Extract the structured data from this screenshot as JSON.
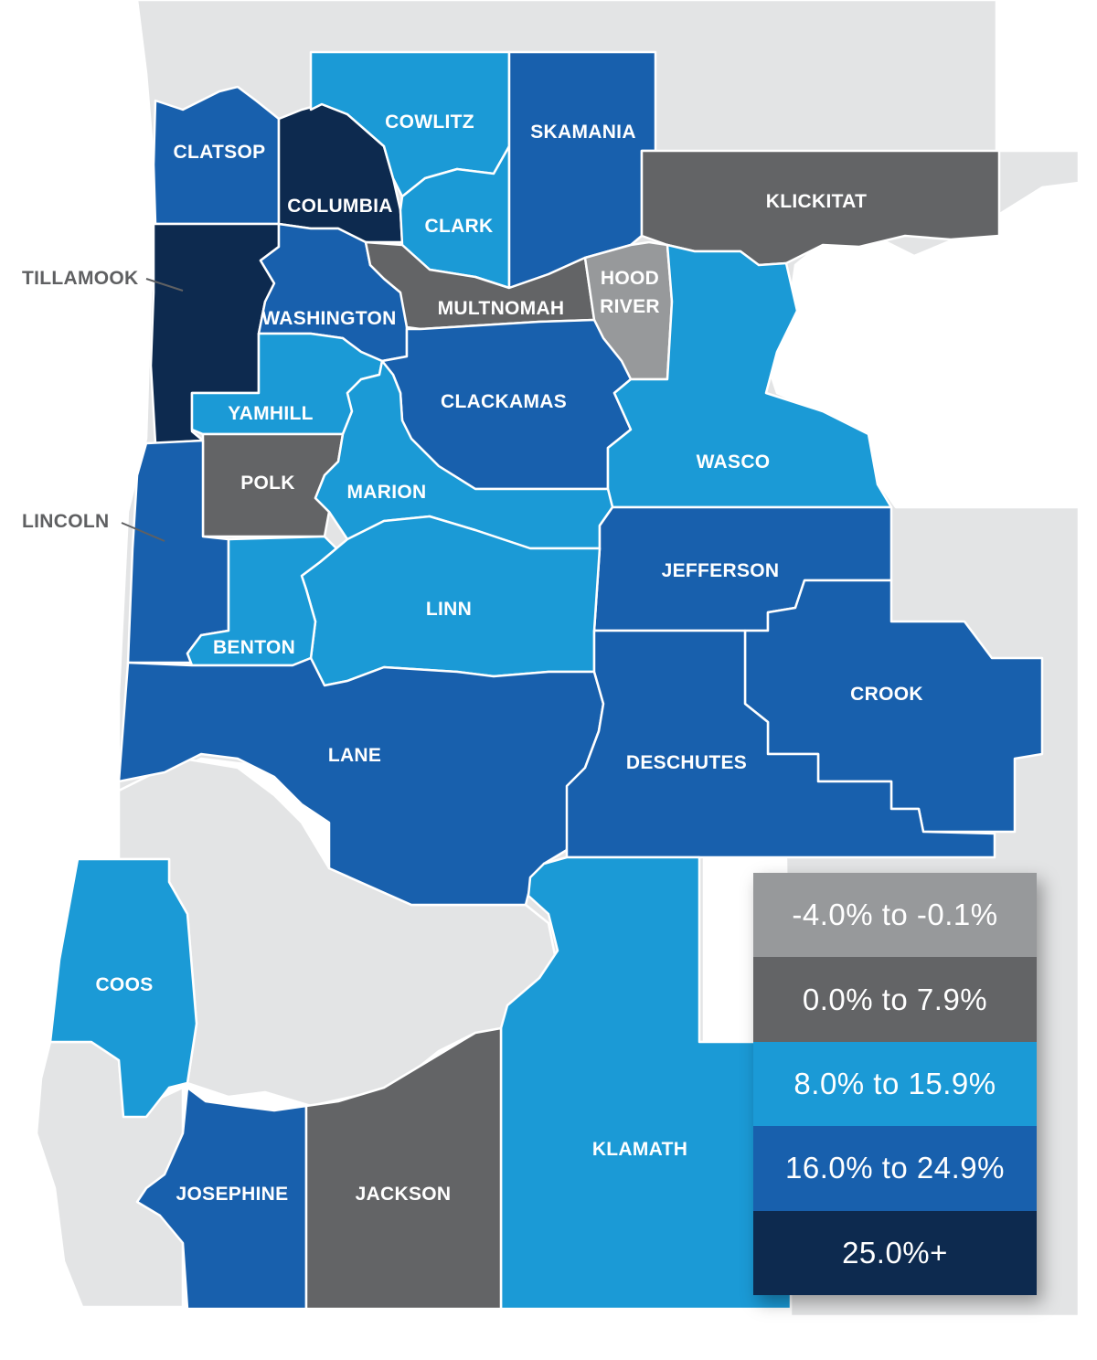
{
  "legend": {
    "items": [
      {
        "label": "-4.0% to -0.1%",
        "color": "#97999b"
      },
      {
        "label": "0.0% to 7.9%",
        "color": "#636466"
      },
      {
        "label": "8.0% to 15.9%",
        "color": "#1b9ad6"
      },
      {
        "label": "16.0% to 24.9%",
        "color": "#1860ad"
      },
      {
        "label": "25.0%+",
        "color": "#0d2a4f"
      }
    ]
  },
  "counties": {
    "clatsop": {
      "name": "CLATSOP",
      "bucket": "16.0% to 24.9%"
    },
    "columbia": {
      "name": "COLUMBIA",
      "bucket": "25.0%+"
    },
    "cowlitz": {
      "name": "COWLITZ",
      "bucket": "8.0% to 15.9%"
    },
    "clark": {
      "name": "CLARK",
      "bucket": "8.0% to 15.9%"
    },
    "skamania": {
      "name": "SKAMANIA",
      "bucket": "16.0% to 24.9%"
    },
    "klickitat": {
      "name": "KLICKITAT",
      "bucket": "0.0% to 7.9%"
    },
    "tillamook": {
      "name": "TILLAMOOK",
      "bucket": "25.0%+"
    },
    "washington": {
      "name": "WASHINGTON",
      "bucket": "16.0% to 24.9%"
    },
    "multnomah": {
      "name": "MULTNOMAH",
      "bucket": "0.0% to 7.9%"
    },
    "hood_river": {
      "name_line1": "HOOD",
      "name_line2": "RIVER",
      "bucket": "-4.0% to -0.1%"
    },
    "yamhill": {
      "name": "YAMHILL",
      "bucket": "8.0% to 15.9%"
    },
    "clackamas": {
      "name": "CLACKAMAS",
      "bucket": "16.0% to 24.9%"
    },
    "wasco": {
      "name": "WASCO",
      "bucket": "8.0% to 15.9%"
    },
    "polk": {
      "name": "POLK",
      "bucket": "0.0% to 7.9%"
    },
    "marion": {
      "name": "MARION",
      "bucket": "8.0% to 15.9%"
    },
    "lincoln": {
      "name": "LINCOLN",
      "bucket": "16.0% to 24.9%"
    },
    "jefferson": {
      "name": "JEFFERSON",
      "bucket": "16.0% to 24.9%"
    },
    "linn": {
      "name": "LINN",
      "bucket": "8.0% to 15.9%"
    },
    "benton": {
      "name": "BENTON",
      "bucket": "8.0% to 15.9%"
    },
    "crook": {
      "name": "CROOK",
      "bucket": "16.0% to 24.9%"
    },
    "lane": {
      "name": "LANE",
      "bucket": "16.0% to 24.9%"
    },
    "deschutes": {
      "name": "DESCHUTES",
      "bucket": "16.0% to 24.9%"
    },
    "coos": {
      "name": "COOS",
      "bucket": "8.0% to 15.9%"
    },
    "klamath": {
      "name": "KLAMATH",
      "bucket": "8.0% to 15.9%"
    },
    "josephine": {
      "name": "JOSEPHINE",
      "bucket": "16.0% to 24.9%"
    },
    "jackson": {
      "name": "JACKSON",
      "bucket": "0.0% to 7.9%"
    }
  }
}
